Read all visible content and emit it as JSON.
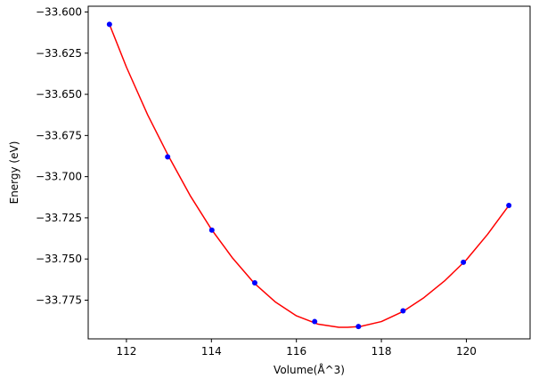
{
  "chart_data": {
    "type": "scatter",
    "title": "",
    "xlabel": "Volume(Å^3)",
    "ylabel": "Energy (eV)",
    "xlim": [
      111.1,
      121.5
    ],
    "ylim": [
      -33.7985,
      -33.5965
    ],
    "xticks": [
      112,
      114,
      116,
      118,
      120
    ],
    "xtick_labels": [
      "112",
      "114",
      "116",
      "118",
      "120"
    ],
    "yticks": [
      -33.6,
      -33.625,
      -33.65,
      -33.675,
      -33.7,
      -33.725,
      -33.75,
      -33.775
    ],
    "ytick_labels": [
      "−33.600",
      "−33.625",
      "−33.650",
      "−33.675",
      "−33.700",
      "−33.725",
      "−33.750",
      "−33.775"
    ],
    "grid": false,
    "series": [
      {
        "kind": "points",
        "color": "#0000ff",
        "x": [
          111.6,
          112.97,
          114.01,
          115.02,
          116.43,
          117.46,
          118.51,
          119.93,
          121.0
        ],
        "y": [
          -33.6075,
          -33.688,
          -33.7325,
          -33.7645,
          -33.788,
          -33.791,
          -33.7815,
          -33.752,
          -33.7175
        ]
      },
      {
        "kind": "fit-curve",
        "color": "#ff0000",
        "x": [
          111.6,
          112.0,
          112.5,
          113.0,
          113.5,
          114.0,
          114.5,
          115.0,
          115.5,
          116.0,
          116.5,
          117.0,
          117.2,
          117.5,
          118.0,
          118.5,
          119.0,
          119.5,
          120.0,
          120.5,
          121.0
        ],
        "y": [
          -33.6075,
          -33.6335,
          -33.6625,
          -33.688,
          -33.7115,
          -33.732,
          -33.7495,
          -33.7645,
          -33.776,
          -33.7845,
          -33.7895,
          -33.7915,
          -33.7915,
          -33.791,
          -33.788,
          -33.782,
          -33.7735,
          -33.763,
          -33.7505,
          -33.735,
          -33.7175
        ]
      }
    ]
  }
}
